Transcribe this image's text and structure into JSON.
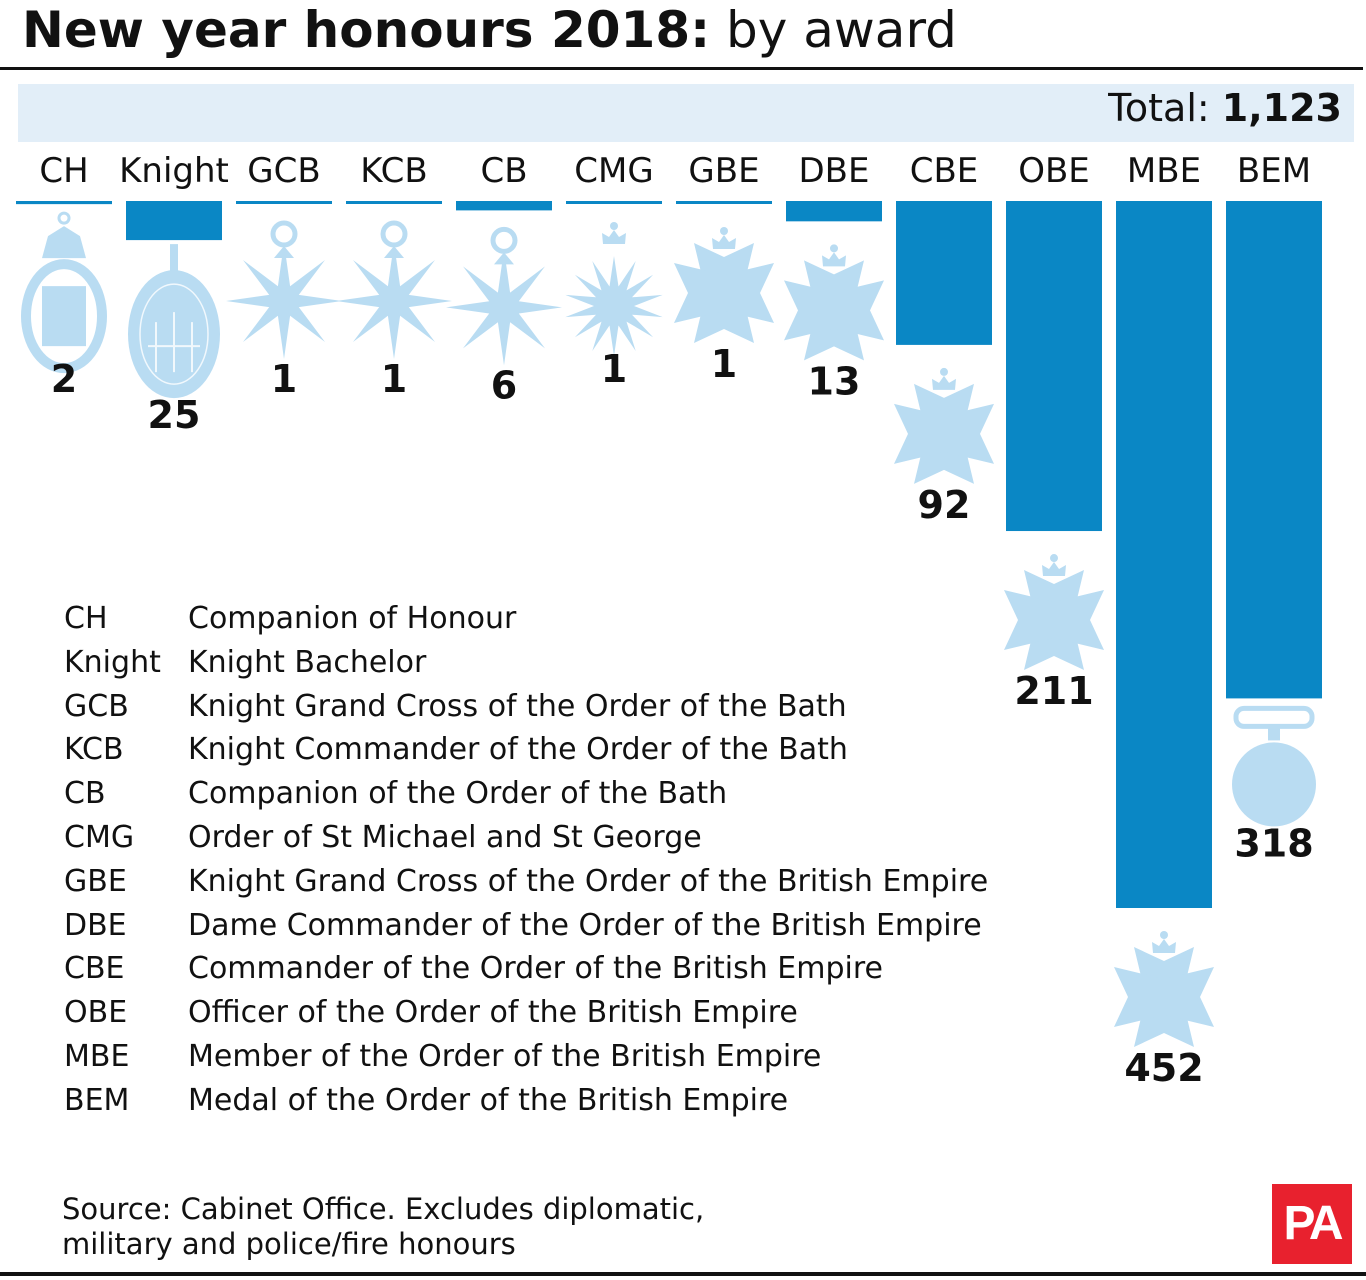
{
  "title": {
    "bold": "New year honours 2018:",
    "regular": "by award"
  },
  "total": {
    "label": "Total:",
    "value": "1,123"
  },
  "colors": {
    "bar": "#0a87c5",
    "medal": "#b9dcf2",
    "band": "#e2eef8",
    "logo": "#e8212e"
  },
  "chart_data": {
    "type": "bar",
    "title": "New year honours 2018: by award",
    "categories": [
      "CH",
      "Knight",
      "GCB",
      "KCB",
      "CB",
      "CMG",
      "GBE",
      "DBE",
      "CBE",
      "OBE",
      "MBE",
      "BEM"
    ],
    "values": [
      2,
      25,
      1,
      1,
      6,
      1,
      1,
      13,
      92,
      211,
      452,
      318
    ],
    "value_labels": [
      "2",
      "25",
      "1",
      "1",
      "6",
      "1",
      "1",
      "13",
      "92",
      "211",
      "452",
      "318"
    ],
    "medal_icons": [
      "ch-medal-icon",
      "knight-badge-icon",
      "bath-star-icon",
      "bath-star-icon",
      "bath-star-icon",
      "st-michael-star-icon",
      "cross-patonce-icon",
      "cross-patonce-icon",
      "cross-patonce-icon",
      "cross-patonce-icon",
      "cross-patonce-icon",
      "round-medal-icon"
    ],
    "orientation": "vertical-downward",
    "grid": false
  },
  "legend": [
    {
      "code": "CH",
      "name": "Companion of Honour"
    },
    {
      "code": "Knight",
      "name": "Knight Bachelor"
    },
    {
      "code": "GCB",
      "name": "Knight Grand Cross of the Order of the Bath"
    },
    {
      "code": "KCB",
      "name": "Knight Commander of the Order of the Bath"
    },
    {
      "code": "CB",
      "name": "Companion of the Order of the Bath"
    },
    {
      "code": "CMG",
      "name": "Order of St Michael and St George"
    },
    {
      "code": "GBE",
      "name": "Knight Grand Cross of the Order of the British Empire"
    },
    {
      "code": "DBE",
      "name": "Dame Commander of the Order of the British Empire"
    },
    {
      "code": "CBE",
      "name": "Commander of the Order of the British Empire"
    },
    {
      "code": "OBE",
      "name": "Officer of the Order of the British Empire"
    },
    {
      "code": "MBE",
      "name": "Member of the Order of the British Empire"
    },
    {
      "code": "BEM",
      "name": "Medal of the Order of the British Empire"
    }
  ],
  "source": {
    "line1": "Source: Cabinet Office. Excludes diplomatic,",
    "line2": "military and police/fire honours"
  },
  "logo": {
    "text": "PA"
  }
}
